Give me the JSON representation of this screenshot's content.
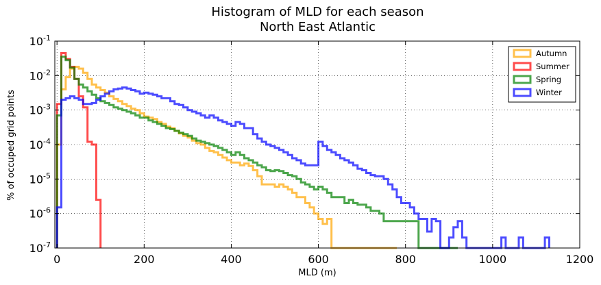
{
  "chart_data": {
    "type": "histogram-step",
    "title": "Histogram of MLD for each season",
    "subtitle": "North East Atlantic",
    "xlabel": "MLD (m)",
    "ylabel": "% of occuped grid points",
    "xlim": [
      -5,
      1200
    ],
    "ylim": [
      1e-07,
      0.1
    ],
    "yscale": "log",
    "grid": true,
    "legend_position": "top-right",
    "x_ticks": [
      0,
      200,
      400,
      600,
      800,
      1000,
      1200
    ],
    "y_ticks": [
      {
        "value": 1e-07,
        "base": "10",
        "exp": "-7"
      },
      {
        "value": 1e-06,
        "base": "10",
        "exp": "-6"
      },
      {
        "value": 1e-05,
        "base": "10",
        "exp": "-5"
      },
      {
        "value": 0.0001,
        "base": "10",
        "exp": "-4"
      },
      {
        "value": 0.001,
        "base": "10",
        "exp": "-3"
      },
      {
        "value": 0.01,
        "base": "10",
        "exp": "-2"
      },
      {
        "value": 0.1,
        "base": "10",
        "exp": "-1"
      }
    ],
    "bin_width": 10,
    "series": [
      {
        "name": "Autumn",
        "color": "#ffa500",
        "x": [
          0,
          10,
          20,
          30,
          40,
          50,
          60,
          70,
          80,
          90,
          100,
          110,
          120,
          130,
          140,
          150,
          160,
          170,
          180,
          190,
          200,
          210,
          220,
          230,
          240,
          250,
          260,
          270,
          280,
          290,
          300,
          310,
          320,
          330,
          340,
          350,
          360,
          370,
          380,
          390,
          400,
          410,
          420,
          430,
          440,
          450,
          460,
          470,
          480,
          490,
          500,
          510,
          520,
          530,
          540,
          550,
          560,
          570,
          580,
          590,
          600,
          610,
          620,
          630,
          640,
          650,
          660,
          670,
          680,
          690,
          700,
          710,
          720,
          730,
          740,
          750,
          760,
          770
        ],
        "y": [
          0.0001,
          0.004,
          0.009,
          0.016,
          0.018,
          0.016,
          0.012,
          0.008,
          0.0055,
          0.0045,
          0.0038,
          0.0032,
          0.0025,
          0.0021,
          0.0018,
          0.0015,
          0.0013,
          0.0011,
          0.001,
          0.0008,
          0.00065,
          0.0006,
          0.00055,
          0.00045,
          0.0004,
          0.00033,
          0.0003,
          0.00025,
          0.00021,
          0.00018,
          0.00016,
          0.00013,
          0.00011,
          0.0001,
          8e-05,
          6.5e-05,
          6e-05,
          5e-05,
          4.2e-05,
          3.5e-05,
          3e-05,
          3e-05,
          2.5e-05,
          2.8e-05,
          2.4e-05,
          1.8e-05,
          1.2e-05,
          7e-06,
          7e-06,
          7e-06,
          6e-06,
          7e-06,
          6e-06,
          5e-06,
          4e-06,
          3e-06,
          3e-06,
          2e-06,
          1.5e-06,
          1e-06,
          7e-07,
          5e-07,
          7e-07,
          1e-07,
          1e-07,
          1e-07,
          1e-07,
          1e-07,
          1e-07,
          1e-07,
          1e-07,
          1e-07,
          1e-07,
          1e-07,
          1e-07,
          1e-07,
          1e-07,
          1e-07
        ],
        "y_note_zero_bins": [
          630,
          640,
          660,
          680,
          690,
          700,
          710,
          720,
          730,
          740,
          750,
          760,
          770
        ]
      },
      {
        "name": "Summer",
        "color": "#ff0000",
        "x": [
          0,
          10,
          20,
          30,
          40,
          50,
          60,
          70,
          80,
          90
        ],
        "y": [
          0.0015,
          0.045,
          0.03,
          0.018,
          0.008,
          0.0025,
          0.0012,
          0.00012,
          0.0001,
          2.5e-06
        ]
      },
      {
        "name": "Spring",
        "color": "#008000",
        "x": [
          0,
          10,
          20,
          30,
          40,
          50,
          60,
          70,
          80,
          90,
          100,
          110,
          120,
          130,
          140,
          150,
          160,
          170,
          180,
          190,
          200,
          210,
          220,
          230,
          240,
          250,
          260,
          270,
          280,
          290,
          300,
          310,
          320,
          330,
          340,
          350,
          360,
          370,
          380,
          390,
          400,
          410,
          420,
          430,
          440,
          450,
          460,
          470,
          480,
          490,
          500,
          510,
          520,
          530,
          540,
          550,
          560,
          570,
          580,
          590,
          600,
          610,
          620,
          630,
          640,
          650,
          660,
          670,
          680,
          690,
          700,
          710,
          720,
          730,
          740,
          750,
          760,
          770,
          780,
          790,
          800,
          810,
          820,
          830,
          840,
          850,
          860,
          870,
          880,
          890,
          900,
          910
        ],
        "y": [
          0.0007,
          0.035,
          0.028,
          0.017,
          0.008,
          0.0055,
          0.0045,
          0.0035,
          0.0028,
          0.0022,
          0.0018,
          0.0016,
          0.0014,
          0.0012,
          0.0011,
          0.001,
          0.0009,
          0.0008,
          0.0007,
          0.0006,
          0.0006,
          0.0005,
          0.00045,
          0.0004,
          0.00035,
          0.0003,
          0.00028,
          0.00025,
          0.00022,
          0.0002,
          0.00018,
          0.00015,
          0.00013,
          0.00012,
          0.00011,
          0.0001,
          9e-05,
          8e-05,
          7e-05,
          6e-05,
          5e-05,
          6e-05,
          5e-05,
          4e-05,
          3.5e-05,
          3e-05,
          2.5e-05,
          2.2e-05,
          1.8e-05,
          1.7e-05,
          1.8e-05,
          1.7e-05,
          1.5e-05,
          1.3e-05,
          1.2e-05,
          1e-05,
          8e-06,
          7e-06,
          6e-06,
          5e-06,
          6e-06,
          5e-06,
          4e-06,
          3e-06,
          3e-06,
          3e-06,
          2e-06,
          2.5e-06,
          2e-06,
          1.8e-06,
          1.8e-06,
          1.5e-06,
          1.2e-06,
          1.2e-06,
          1e-06,
          6e-07,
          6e-07,
          6e-07,
          6e-07,
          6e-07,
          6e-07,
          6e-07,
          6e-07,
          1e-07,
          1e-07,
          1e-07,
          1e-07,
          1e-07,
          1e-07,
          1e-07,
          1e-07,
          1e-07
        ]
      },
      {
        "name": "Winter",
        "color": "#0000ff",
        "x": [
          0,
          10,
          20,
          30,
          40,
          50,
          60,
          70,
          80,
          90,
          100,
          110,
          120,
          130,
          140,
          150,
          160,
          170,
          180,
          190,
          200,
          210,
          220,
          230,
          240,
          250,
          260,
          270,
          280,
          290,
          300,
          310,
          320,
          330,
          340,
          350,
          360,
          370,
          380,
          390,
          400,
          410,
          420,
          430,
          440,
          450,
          460,
          470,
          480,
          490,
          500,
          510,
          520,
          530,
          540,
          550,
          560,
          570,
          580,
          590,
          600,
          610,
          620,
          630,
          640,
          650,
          660,
          670,
          680,
          690,
          700,
          710,
          720,
          730,
          740,
          750,
          760,
          770,
          780,
          790,
          800,
          810,
          820,
          830,
          840,
          850,
          860,
          870,
          880,
          890,
          900,
          910,
          920,
          930,
          940,
          950,
          960,
          970,
          980,
          990,
          1000,
          1010,
          1020,
          1030,
          1040,
          1050,
          1060,
          1070,
          1080,
          1090,
          1100,
          1110,
          1120
        ],
        "y": [
          1.5e-06,
          0.002,
          0.0022,
          0.0025,
          0.0022,
          0.002,
          0.0015,
          0.0015,
          0.0016,
          0.002,
          0.0025,
          0.003,
          0.0035,
          0.004,
          0.0042,
          0.0045,
          0.0042,
          0.0038,
          0.0035,
          0.003,
          0.0032,
          0.003,
          0.0028,
          0.0025,
          0.0022,
          0.0022,
          0.0018,
          0.0015,
          0.0014,
          0.0012,
          0.001,
          0.0009,
          0.0008,
          0.0007,
          0.0006,
          0.0007,
          0.0006,
          0.0005,
          0.00045,
          0.0004,
          0.00035,
          0.00045,
          0.0004,
          0.0003,
          0.0003,
          0.0002,
          0.00015,
          0.00012,
          0.0001,
          9e-05,
          8e-05,
          7e-05,
          6e-05,
          5e-05,
          4e-05,
          3.5e-05,
          2.8e-05,
          2.5e-05,
          2.5e-05,
          2.5e-05,
          0.00012,
          9e-05,
          7e-05,
          6e-05,
          5e-05,
          4e-05,
          3.5e-05,
          3e-05,
          2.5e-05,
          2e-05,
          1.8e-05,
          1.5e-05,
          1.3e-05,
          1.2e-05,
          1.2e-05,
          1e-05,
          7e-06,
          5e-06,
          3e-06,
          2e-06,
          2e-06,
          1.5e-06,
          1e-06,
          7e-07,
          7e-07,
          3e-07,
          7e-07,
          6e-07,
          1e-07,
          1e-07,
          2e-07,
          4e-07,
          6e-07,
          2e-07,
          1e-07,
          1e-07,
          1e-07,
          1e-07,
          1e-07,
          1e-07,
          1e-07,
          1e-07,
          2e-07,
          1e-07,
          1e-07,
          1e-07,
          2e-07,
          1e-07,
          1e-07,
          1e-07,
          1e-07,
          1e-07,
          2e-07
        ]
      }
    ]
  }
}
